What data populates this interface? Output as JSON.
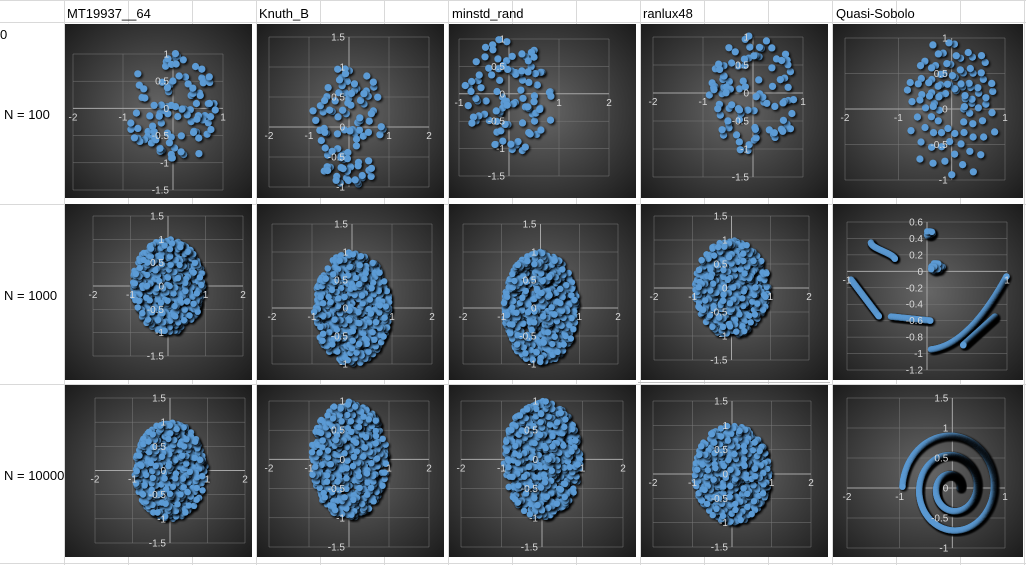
{
  "corner_label": "0",
  "columns": [
    "MT19937__64",
    "Knuth_B",
    "minstd_rand",
    "ranlux48",
    "Quasi-Sobolo"
  ],
  "rows": [
    "N = 100",
    "N = 1000",
    "N = 10000"
  ],
  "colors": {
    "point": "#5b9bd5",
    "background_center": "#666666",
    "background_edge": "#1c1c1c",
    "axis": "#a6a6a6",
    "tick_text": "#d9d9d9"
  },
  "chart_data": [
    {
      "type": "scatter",
      "grid": true,
      "xlim": [
        -2,
        1
      ],
      "ylim": [
        -1.5,
        1
      ],
      "xticks": [
        -2,
        -1,
        0,
        1
      ],
      "yticks": [
        -1.5,
        -1,
        -0.5,
        0,
        0.5,
        1
      ],
      "shape": "random",
      "n": 100
    },
    {
      "type": "scatter",
      "grid": true,
      "xlim": [
        -2,
        2
      ],
      "ylim": [
        -1,
        1.5
      ],
      "xticks": [
        -2,
        -1,
        0,
        1,
        2
      ],
      "yticks": [
        -1,
        -0.5,
        0,
        0.5,
        1,
        1.5
      ],
      "shape": "random",
      "n": 100
    },
    {
      "type": "scatter",
      "grid": true,
      "xlim": [
        -1,
        2
      ],
      "ylim": [
        -1.5,
        1
      ],
      "xticks": [
        -1,
        0,
        1,
        2
      ],
      "yticks": [
        -1.5,
        -1,
        -0.5,
        0,
        0.5,
        1
      ],
      "shape": "random",
      "n": 100
    },
    {
      "type": "scatter",
      "grid": true,
      "xlim": [
        -2,
        1
      ],
      "ylim": [
        -1.5,
        1
      ],
      "xticks": [
        -2,
        -1,
        0,
        1
      ],
      "yticks": [
        -1.5,
        -1,
        -0.5,
        0,
        0.5,
        1
      ],
      "shape": "random",
      "n": 100
    },
    {
      "type": "scatter",
      "grid": true,
      "xlim": [
        -2,
        1
      ],
      "ylim": [
        -1,
        1
      ],
      "xticks": [
        -2,
        -1,
        0,
        1
      ],
      "yticks": [
        -1,
        -0.5,
        0,
        0.5,
        1
      ],
      "shape": "sobol",
      "n": 100
    },
    {
      "type": "scatter",
      "grid": true,
      "xlim": [
        -2,
        2
      ],
      "ylim": [
        -1.5,
        1.5
      ],
      "xticks": [
        -2,
        -1,
        0,
        1,
        2
      ],
      "yticks": [
        -1.5,
        -1,
        -0.5,
        0,
        0.5,
        1,
        1.5
      ],
      "shape": "disk",
      "n": 1000
    },
    {
      "type": "scatter",
      "grid": true,
      "xlim": [
        -2,
        2
      ],
      "ylim": [
        -1,
        1.5
      ],
      "xticks": [
        -2,
        -1,
        0,
        1,
        2
      ],
      "yticks": [
        -1,
        -0.5,
        0,
        0.5,
        1,
        1.5
      ],
      "shape": "disk",
      "n": 1000
    },
    {
      "type": "scatter",
      "grid": true,
      "xlim": [
        -2,
        2
      ],
      "ylim": [
        -1,
        1.5
      ],
      "xticks": [
        -2,
        -1,
        0,
        1,
        2
      ],
      "yticks": [
        -1,
        -0.5,
        0,
        0.5,
        1,
        1.5
      ],
      "shape": "disk",
      "n": 1000
    },
    {
      "type": "scatter",
      "grid": true,
      "xlim": [
        -2,
        2
      ],
      "ylim": [
        -1.5,
        1.5
      ],
      "xticks": [
        -2,
        -1,
        0,
        1,
        2
      ],
      "yticks": [
        -1.5,
        -1,
        -0.5,
        0,
        0.5,
        1,
        1.5
      ],
      "shape": "disk",
      "n": 1000
    },
    {
      "type": "scatter",
      "grid": true,
      "xlim": [
        -1,
        1
      ],
      "ylim": [
        -1.2,
        0.6
      ],
      "xticks": [
        -1,
        0,
        1
      ],
      "yticks": [
        -1.2,
        -1,
        -0.8,
        -0.6,
        -0.4,
        -0.2,
        0,
        0.2,
        0.4,
        0.6
      ],
      "shape": "sobol1000",
      "n": 1000
    },
    {
      "type": "scatter",
      "grid": true,
      "xlim": [
        -2,
        2
      ],
      "ylim": [
        -1.5,
        1.5
      ],
      "xticks": [
        -2,
        -1,
        0,
        1,
        2
      ],
      "yticks": [
        -1.5,
        -1,
        -0.5,
        0,
        0.5,
        1,
        1.5
      ],
      "shape": "disk",
      "n": 10000
    },
    {
      "type": "scatter",
      "grid": true,
      "xlim": [
        -2,
        2
      ],
      "ylim": [
        -1.5,
        1
      ],
      "xticks": [
        -2,
        -1,
        0,
        1,
        2
      ],
      "yticks": [
        -1.5,
        -1,
        -0.5,
        0,
        0.5,
        1
      ],
      "shape": "disk",
      "n": 10000
    },
    {
      "type": "scatter",
      "grid": true,
      "xlim": [
        -2,
        2
      ],
      "ylim": [
        -1.5,
        1
      ],
      "xticks": [
        -2,
        -1,
        0,
        1,
        2
      ],
      "yticks": [
        -1.5,
        -1,
        -0.5,
        0,
        0.5,
        1
      ],
      "shape": "disk",
      "n": 10000
    },
    {
      "type": "scatter",
      "grid": true,
      "xlim": [
        -2,
        2
      ],
      "ylim": [
        -1.5,
        1.5
      ],
      "xticks": [
        -2,
        -1,
        0,
        1,
        2
      ],
      "yticks": [
        -1.5,
        -1,
        -0.5,
        0,
        0.5,
        1,
        1.5
      ],
      "shape": "disk",
      "n": 10000
    },
    {
      "type": "scatter",
      "grid": true,
      "xlim": [
        -2,
        1
      ],
      "ylim": [
        -1,
        1.5
      ],
      "xticks": [
        -2,
        -1,
        0,
        1
      ],
      "yticks": [
        -1,
        -0.5,
        0,
        0.5,
        1,
        1.5
      ],
      "shape": "spiral",
      "n": 10000
    }
  ]
}
